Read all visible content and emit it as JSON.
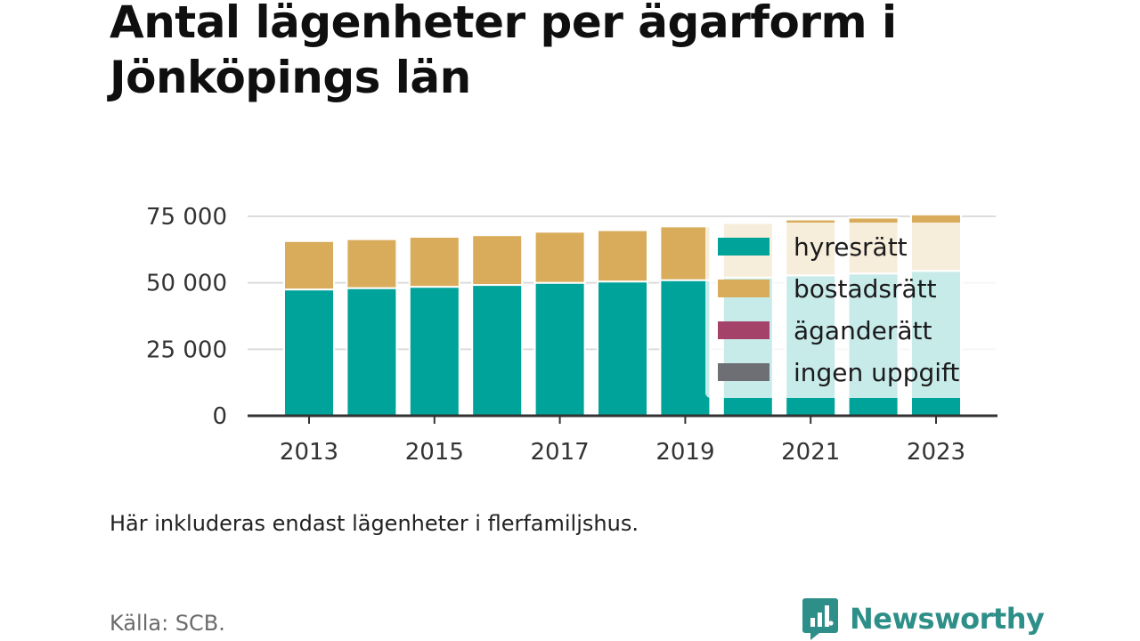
{
  "title": "Antal lägenheter per ägarform i Jönköpings län",
  "note": "Här inkluderas endast lägenheter i flerfamiljshus.",
  "source": "Källa: SCB.",
  "brand": {
    "name": "Newsworthy",
    "icon": "newsworthy-logo-icon",
    "color": "#2e8f89"
  },
  "chart_data": {
    "type": "bar",
    "stacked": true,
    "categories": [
      2013,
      2014,
      2015,
      2016,
      2017,
      2018,
      2019,
      2020,
      2021,
      2022,
      2023
    ],
    "x_tick_labels": [
      "2013",
      "2015",
      "2017",
      "2019",
      "2021",
      "2023"
    ],
    "series": [
      {
        "name": "hyresrätt",
        "color": "#00a399",
        "values": [
          47500,
          48000,
          48500,
          49200,
          50000,
          50500,
          51000,
          52000,
          52800,
          53500,
          54500
        ]
      },
      {
        "name": "bostadsrätt",
        "color": "#d9ac5b",
        "values": [
          18200,
          18400,
          18800,
          18700,
          19200,
          19300,
          20200,
          20500,
          21000,
          21000,
          21200
        ]
      },
      {
        "name": "äganderätt",
        "color": "#a4426a",
        "values": [
          0,
          0,
          0,
          0,
          0,
          0,
          0,
          0,
          0,
          0,
          0
        ]
      },
      {
        "name": "ingen uppgift",
        "color": "#6d6f75",
        "values": [
          0,
          0,
          0,
          0,
          0,
          0,
          0,
          0,
          0,
          0,
          0
        ]
      }
    ],
    "y_ticks": [
      0,
      25000,
      50000,
      75000
    ],
    "y_tick_labels": [
      "0",
      "25 000",
      "50 000",
      "75 000"
    ],
    "ylim": [
      0,
      75000
    ],
    "grid": true,
    "legend_position": "inside-right"
  }
}
